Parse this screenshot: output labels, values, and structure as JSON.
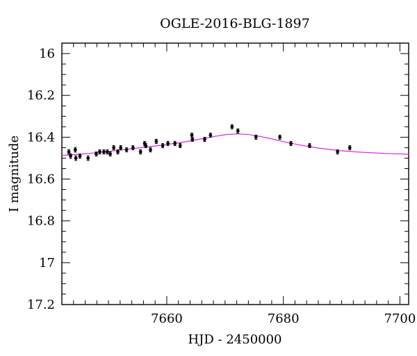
{
  "chart_data": {
    "type": "scatter",
    "title": "OGLE-2016-BLG-1897",
    "xlabel": "HJD - 2450000",
    "ylabel": "I magnitude",
    "xlim": [
      7642,
      7701.5
    ],
    "ylim": [
      17.2,
      15.95
    ],
    "y_inverted": true,
    "grid": false,
    "x_ticks": {
      "major": [
        7660,
        7680,
        7700
      ],
      "major_labels": [
        "7660",
        "7680",
        "7700"
      ],
      "minor_step": 2
    },
    "y_ticks": {
      "major": [
        16,
        16.2,
        16.4,
        16.6,
        16.8,
        17,
        17.2
      ],
      "major_labels": [
        "16",
        "16.2",
        "16.4",
        "16.6",
        "16.8",
        "17",
        "17.2"
      ],
      "minor_step": 0.05
    },
    "series": [
      {
        "type": "scatter",
        "color": "#000000",
        "x": [
          7643.2,
          7643.5,
          7644.3,
          7644.4,
          7645.1,
          7646.5,
          7647.9,
          7648.5,
          7649.2,
          7649.8,
          7650.3,
          7650.9,
          7651.6,
          7652.1,
          7653.1,
          7654.2,
          7655.5,
          7656.2,
          7656.4,
          7657.2,
          7658.2,
          7659.3,
          7660.2,
          7661.4,
          7662.3,
          7664.3,
          7664.4,
          7666.5,
          7667.5,
          7671.2,
          7672.2,
          7675.3,
          7679.4,
          7681.3,
          7684.5,
          7689.3,
          7691.4
        ],
        "y": [
          16.47,
          16.49,
          16.46,
          16.5,
          16.49,
          16.5,
          16.48,
          16.47,
          16.47,
          16.47,
          16.48,
          16.45,
          16.47,
          16.45,
          16.46,
          16.45,
          16.47,
          16.43,
          16.44,
          16.46,
          16.42,
          16.44,
          16.43,
          16.43,
          16.44,
          16.39,
          16.41,
          16.41,
          16.39,
          16.35,
          16.37,
          16.4,
          16.4,
          16.43,
          16.44,
          16.47,
          16.45
        ],
        "yerr": [
          0.011,
          0.011,
          0.011,
          0.011,
          0.01,
          0.011,
          0.01,
          0.01,
          0.01,
          0.01,
          0.01,
          0.01,
          0.01,
          0.01,
          0.01,
          0.01,
          0.01,
          0.01,
          0.01,
          0.01,
          0.01,
          0.01,
          0.01,
          0.01,
          0.01,
          0.01,
          0.01,
          0.01,
          0.01,
          0.01,
          0.01,
          0.01,
          0.01,
          0.01,
          0.01,
          0.01,
          0.01
        ]
      },
      {
        "type": "line",
        "color": "#e020e0",
        "x": [
          7642,
          7646,
          7650,
          7654,
          7658,
          7662,
          7665,
          7668,
          7670,
          7672,
          7674,
          7676,
          7678,
          7680,
          7683,
          7686,
          7690,
          7694,
          7698,
          7701.5
        ],
        "y": [
          16.487,
          16.479,
          16.468,
          16.455,
          16.442,
          16.427,
          16.413,
          16.397,
          16.388,
          16.384,
          16.387,
          16.396,
          16.408,
          16.421,
          16.438,
          16.452,
          16.465,
          16.473,
          16.478,
          16.481
        ]
      }
    ]
  }
}
